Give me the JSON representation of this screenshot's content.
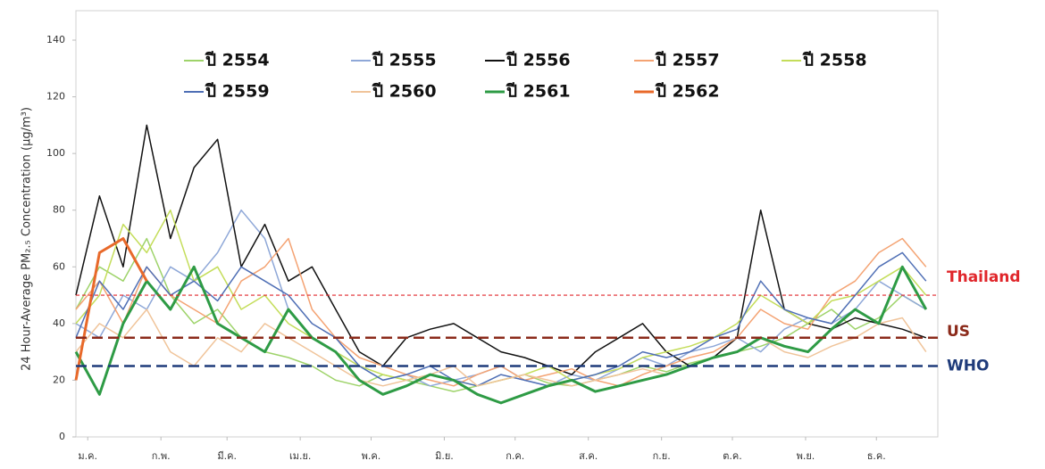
{
  "chart_data": {
    "type": "line",
    "y_label": "24 Hour-Average PM₂.₅ Concentration (µg/m³)",
    "x": [
      0,
      10,
      20,
      30,
      40,
      50,
      60,
      70,
      80,
      90,
      100,
      110,
      120,
      130,
      140,
      150,
      160,
      170,
      180,
      190,
      200,
      210,
      220,
      230,
      240,
      250,
      260,
      270,
      280,
      290,
      300,
      310,
      320,
      330,
      340,
      350,
      360
    ],
    "xlim": [
      0,
      365
    ],
    "xticks": [
      {
        "value": 5,
        "label": "ม.ค."
      },
      {
        "value": 36,
        "label": "ก.พ."
      },
      {
        "value": 64,
        "label": "มี.ค."
      },
      {
        "value": 95,
        "label": "เม.ย."
      },
      {
        "value": 125,
        "label": "พ.ค."
      },
      {
        "value": 156,
        "label": "มิ.ย."
      },
      {
        "value": 186,
        "label": "ก.ค."
      },
      {
        "value": 217,
        "label": "ส.ค."
      },
      {
        "value": 248,
        "label": "ก.ย."
      },
      {
        "value": 278,
        "label": "ต.ค."
      },
      {
        "value": 309,
        "label": "พ.ย."
      },
      {
        "value": 339,
        "label": "ธ.ค."
      }
    ],
    "ylim": [
      0,
      140
    ],
    "yticks": [
      0,
      20,
      40,
      60,
      80,
      100,
      120,
      140
    ],
    "series": [
      {
        "name": "ปี 2554",
        "color": "#9ed36a",
        "width": 1.5,
        "values": [
          45,
          60,
          55,
          70,
          50,
          40,
          45,
          35,
          30,
          28,
          25,
          20,
          18,
          22,
          20,
          18,
          16,
          18,
          20,
          22,
          19,
          18,
          20,
          22,
          25,
          23,
          26,
          28,
          30,
          32,
          35,
          40,
          45,
          38,
          42,
          50,
          45
        ]
      },
      {
        "name": "ปี 2555",
        "color": "#8fa8d8",
        "width": 1.5,
        "values": [
          40,
          35,
          50,
          45,
          60,
          55,
          65,
          80,
          70,
          45,
          35,
          30,
          25,
          20,
          22,
          18,
          20,
          22,
          25,
          20,
          18,
          22,
          20,
          24,
          28,
          25,
          30,
          32,
          35,
          30,
          38,
          42,
          40,
          45,
          55,
          50,
          45
        ]
      },
      {
        "name": "ปี 2556",
        "color": "#111111",
        "width": 1.5,
        "values": [
          50,
          85,
          60,
          110,
          70,
          95,
          105,
          60,
          75,
          55,
          60,
          45,
          30,
          25,
          35,
          38,
          40,
          35,
          30,
          28,
          25,
          22,
          30,
          35,
          40,
          30,
          25,
          28,
          35,
          80,
          45,
          40,
          38,
          42,
          40,
          38,
          35
        ]
      },
      {
        "name": "ปี 2557",
        "color": "#f4a373",
        "width": 1.5,
        "values": [
          45,
          55,
          40,
          60,
          50,
          45,
          40,
          55,
          60,
          70,
          45,
          35,
          28,
          25,
          22,
          20,
          18,
          22,
          25,
          20,
          22,
          24,
          20,
          18,
          22,
          25,
          28,
          30,
          35,
          45,
          40,
          38,
          50,
          55,
          65,
          70,
          60
        ]
      },
      {
        "name": "ปี 2558",
        "color": "#c4dd5a",
        "width": 1.5,
        "values": [
          40,
          50,
          75,
          65,
          80,
          55,
          60,
          45,
          50,
          40,
          35,
          30,
          25,
          22,
          20,
          22,
          20,
          18,
          20,
          22,
          25,
          20,
          22,
          24,
          28,
          30,
          32,
          35,
          40,
          50,
          45,
          40,
          48,
          50,
          55,
          60,
          50
        ]
      },
      {
        "name": "ปี 2559",
        "color": "#4f6fb5",
        "width": 1.5,
        "values": [
          35,
          55,
          45,
          60,
          50,
          55,
          48,
          60,
          55,
          50,
          40,
          35,
          25,
          20,
          22,
          25,
          20,
          18,
          22,
          20,
          18,
          20,
          22,
          25,
          30,
          28,
          30,
          35,
          38,
          55,
          45,
          42,
          40,
          50,
          60,
          65,
          55
        ]
      },
      {
        "name": "ปี 2560",
        "color": "#f0c49a",
        "width": 1.5,
        "values": [
          30,
          40,
          35,
          45,
          30,
          25,
          35,
          30,
          40,
          35,
          30,
          25,
          20,
          18,
          20,
          22,
          25,
          18,
          20,
          22,
          20,
          18,
          20,
          22,
          24,
          22,
          25,
          28,
          30,
          35,
          30,
          28,
          32,
          35,
          40,
          42,
          30
        ]
      },
      {
        "name": "ปี 2561",
        "color": "#2e9b45",
        "width": 3,
        "values": [
          30,
          15,
          40,
          55,
          45,
          60,
          40,
          35,
          30,
          45,
          35,
          30,
          20,
          15,
          18,
          22,
          20,
          15,
          12,
          15,
          18,
          20,
          16,
          18,
          20,
          22,
          25,
          28,
          30,
          35,
          32,
          30,
          38,
          45,
          40,
          60,
          45
        ]
      },
      {
        "name": "ปี 2562",
        "color": "#e8692a",
        "width": 3,
        "values": [
          20,
          65,
          70,
          55,
          null,
          null,
          null,
          null,
          null,
          null,
          null,
          null,
          null,
          null,
          null,
          null,
          null,
          null,
          null,
          null,
          null,
          null,
          null,
          null,
          null,
          null,
          null,
          null,
          null,
          null,
          null,
          null,
          null,
          null,
          null,
          null,
          null
        ]
      }
    ],
    "reference_lines": [
      {
        "name": "Thailand",
        "value": 50,
        "color": "#e0262b"
      },
      {
        "name": "US",
        "value": 35,
        "color": "#8b2a1a"
      },
      {
        "name": "WHO",
        "value": 25,
        "color": "#1f3b7a"
      }
    ]
  }
}
